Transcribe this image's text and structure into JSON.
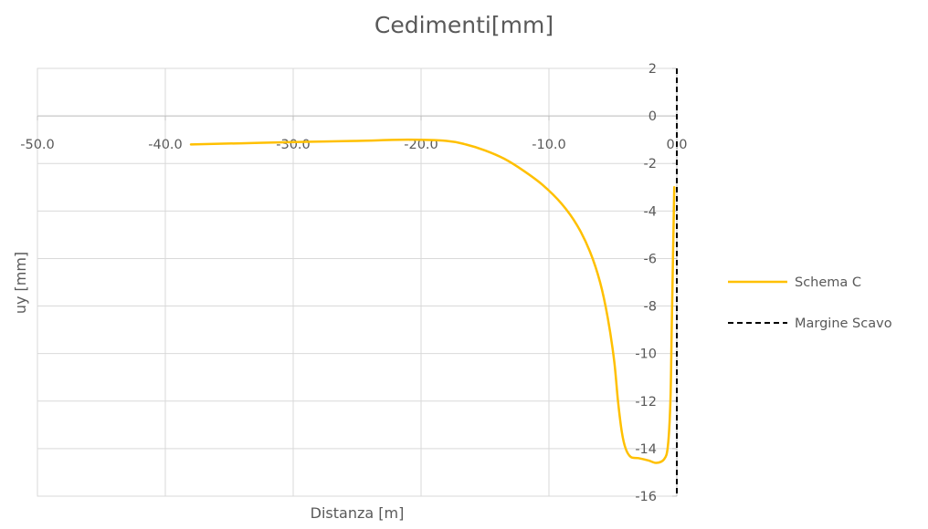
{
  "chart_data": {
    "type": "line",
    "title": "Cedimenti[mm]",
    "xlabel": "Distanza [m]",
    "ylabel": "uy [mm]",
    "xlim": [
      -50,
      0
    ],
    "ylim": [
      -16,
      2
    ],
    "x_ticks": [
      "-50.0",
      "-40.0",
      "-30.0",
      "-20.0",
      "-10.0",
      "0.0"
    ],
    "y_ticks": [
      "2",
      "0",
      "-2",
      "-4",
      "-6",
      "-8",
      "-10",
      "-12",
      "-14",
      "-16"
    ],
    "grid": true,
    "legend_position": "right",
    "series": [
      {
        "name": "Schema C",
        "color": "#FFC000",
        "style": "solid",
        "points": [
          [
            -38.0,
            -1.2
          ],
          [
            -34.0,
            -1.15
          ],
          [
            -30.0,
            -1.1
          ],
          [
            -25.0,
            -1.05
          ],
          [
            -21.0,
            -1.0
          ],
          [
            -18.0,
            -1.05
          ],
          [
            -16.5,
            -1.2
          ],
          [
            -15.0,
            -1.45
          ],
          [
            -13.5,
            -1.8
          ],
          [
            -12.0,
            -2.3
          ],
          [
            -10.5,
            -2.9
          ],
          [
            -9.0,
            -3.7
          ],
          [
            -7.8,
            -4.6
          ],
          [
            -6.8,
            -5.7
          ],
          [
            -6.0,
            -7.0
          ],
          [
            -5.4,
            -8.5
          ],
          [
            -4.9,
            -10.3
          ],
          [
            -4.6,
            -12.0
          ],
          [
            -4.3,
            -13.3
          ],
          [
            -4.0,
            -14.0
          ],
          [
            -3.6,
            -14.35
          ],
          [
            -3.0,
            -14.4
          ],
          [
            -2.2,
            -14.5
          ],
          [
            -1.6,
            -14.6
          ],
          [
            -1.0,
            -14.45
          ],
          [
            -0.7,
            -13.9
          ],
          [
            -0.5,
            -12.0
          ],
          [
            -0.4,
            -9.0
          ],
          [
            -0.3,
            -6.0
          ],
          [
            -0.2,
            -3.0
          ]
        ]
      },
      {
        "name": "Margine Scavo",
        "color": "#000000",
        "style": "dashed",
        "points": [
          [
            0,
            2
          ],
          [
            0,
            -16
          ]
        ]
      }
    ]
  }
}
